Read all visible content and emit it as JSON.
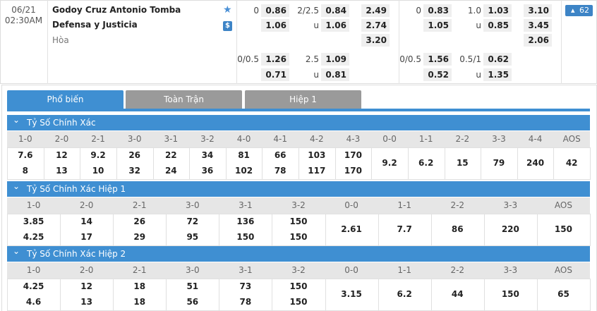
{
  "match": {
    "date": "06/21",
    "time": "02:30AM",
    "home": "Godoy Cruz Antonio Tomba",
    "away": "Defensa y Justicia",
    "draw": "Hòa",
    "more": "62",
    "blocks": [
      {
        "rows": [
          [
            "0",
            "0.86",
            "2/2.5",
            "0.84",
            "2.49"
          ],
          [
            null,
            "1.06",
            "u",
            "1.06",
            "2.74"
          ],
          [
            null,
            null,
            null,
            null,
            "3.20"
          ],
          [
            "0/0.5",
            "1.26",
            "2.5",
            "1.09",
            null
          ],
          [
            null,
            "0.71",
            "u",
            "0.81",
            null
          ]
        ]
      },
      {
        "rows": [
          [
            "0",
            "0.83",
            "1.0",
            "1.03",
            "3.10"
          ],
          [
            null,
            "1.05",
            "u",
            "0.85",
            "3.45"
          ],
          [
            null,
            null,
            null,
            null,
            "2.06"
          ],
          [
            "0/0.5",
            "1.56",
            "0.5/1",
            "0.62",
            null
          ],
          [
            null,
            "0.52",
            "u",
            "1.35",
            null
          ]
        ]
      }
    ]
  },
  "tabs": [
    "Phổ biến",
    "Toàn Trận",
    "Hiệp 1"
  ],
  "sections": [
    {
      "title": "Tỷ Số Chính Xác",
      "columns": [
        "1-0",
        "2-0",
        "2-1",
        "3-0",
        "3-1",
        "3-2",
        "4-0",
        "4-1",
        "4-2",
        "4-3",
        "0-0",
        "1-1",
        "2-2",
        "3-3",
        "4-4",
        "AOS"
      ],
      "values": [
        [
          "7.6",
          "8"
        ],
        [
          "12",
          "13"
        ],
        [
          "9.2",
          "10"
        ],
        [
          "26",
          "32"
        ],
        [
          "22",
          "24"
        ],
        [
          "34",
          "36"
        ],
        [
          "81",
          "102"
        ],
        [
          "66",
          "78"
        ],
        [
          "103",
          "117"
        ],
        [
          "170",
          "170"
        ],
        [
          "9.2"
        ],
        [
          "6.2"
        ],
        [
          "15"
        ],
        [
          "79"
        ],
        [
          "240"
        ],
        [
          "42"
        ]
      ]
    },
    {
      "title": "Tỷ Số Chính Xác Hiệp 1",
      "columns": [
        "1-0",
        "2-0",
        "2-1",
        "3-0",
        "3-1",
        "3-2",
        "0-0",
        "1-1",
        "2-2",
        "3-3",
        "AOS"
      ],
      "values": [
        [
          "3.85",
          "4.25"
        ],
        [
          "14",
          "17"
        ],
        [
          "26",
          "29"
        ],
        [
          "72",
          "95"
        ],
        [
          "136",
          "150"
        ],
        [
          "150",
          "150"
        ],
        [
          "2.61"
        ],
        [
          "7.7"
        ],
        [
          "86"
        ],
        [
          "220"
        ],
        [
          "150"
        ]
      ]
    },
    {
      "title": "Tỷ Số Chính Xác Hiệp 2",
      "columns": [
        "1-0",
        "2-0",
        "2-1",
        "3-0",
        "3-1",
        "3-2",
        "0-0",
        "1-1",
        "2-2",
        "3-3",
        "AOS"
      ],
      "values": [
        [
          "4.25",
          "4.6"
        ],
        [
          "12",
          "13"
        ],
        [
          "18",
          "18"
        ],
        [
          "51",
          "56"
        ],
        [
          "73",
          "78"
        ],
        [
          "150",
          "150"
        ],
        [
          "3.15"
        ],
        [
          "6.2"
        ],
        [
          "44"
        ],
        [
          "150"
        ],
        [
          "65"
        ]
      ]
    }
  ]
}
